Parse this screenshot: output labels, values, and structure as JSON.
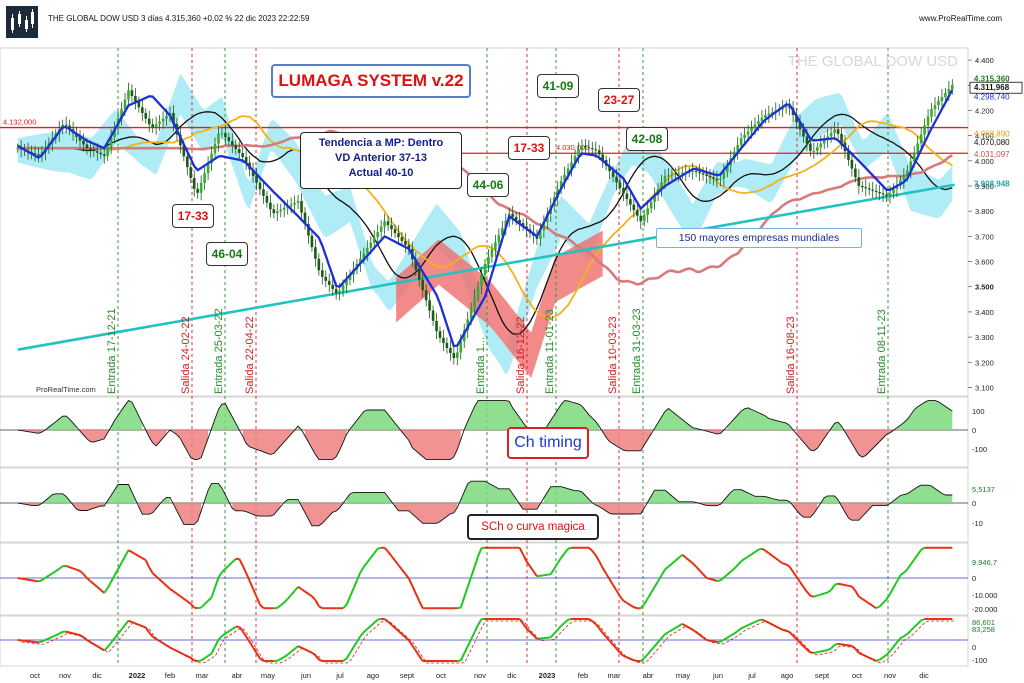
{
  "header": {
    "title": "THE GLOBAL DOW USD 3 días 4.315,360 +0,02 % 22 dic 2023 22:22:59",
    "site": "www.ProRealTime.com",
    "watermark": "THE GLOBAL DOW USD",
    "bottom_left": "ProRealTime.com"
  },
  "annotations": {
    "system_title": "LUMAGA SYSTEM v.22",
    "trend_box": [
      "Tendencia a MP: Dentro",
      "VD Anterior 37-13",
      "Actual 40-10"
    ],
    "companies": "150 mayores empresas mundiales",
    "ch_timing": "Ch timing",
    "sch": "SCh o curva magica",
    "level_4132": "4.132,000",
    "level_4030": "4.030,000"
  },
  "score_boxes": [
    {
      "text": "17-33",
      "color": "red"
    },
    {
      "text": "46-04",
      "color": "green"
    },
    {
      "text": "44-06",
      "color": "green"
    },
    {
      "text": "17-33",
      "color": "red"
    },
    {
      "text": "41-09",
      "color": "green"
    },
    {
      "text": "23-27",
      "color": "red"
    },
    {
      "text": "42-08",
      "color": "green"
    }
  ],
  "signals": [
    {
      "label": "Entrada 17-12-21",
      "type": "entrada"
    },
    {
      "label": "Salida 24-02-22",
      "type": "salida"
    },
    {
      "label": "Entrada 25-03-22",
      "type": "entrada"
    },
    {
      "label": "Salida 22-04-22",
      "type": "salida"
    },
    {
      "label": "Entrada 1...",
      "type": "entrada"
    },
    {
      "label": "Salida 16-12-22",
      "type": "salida"
    },
    {
      "label": "Entrada 11-01-23",
      "type": "entrada"
    },
    {
      "label": "Salida 10-03-23",
      "type": "salida"
    },
    {
      "label": "Entrada 31-03-23",
      "type": "entrada"
    },
    {
      "label": "Salida 16-08-23",
      "type": "salida"
    },
    {
      "label": "Entrada 08-11-23",
      "type": "entrada"
    }
  ],
  "colors": {
    "blue_line": "#1e2fd6",
    "black_line": "#111111",
    "yellow_line": "#f2b21a",
    "salmon_line": "#d97a7a",
    "teal_line": "#23c2c2",
    "cloud": "#8fe4f2",
    "red_fill": "#ef6d6d",
    "up_candle": "#2fb02f",
    "down_candle": "#1a5a1a",
    "level_red": "#e02020",
    "entrada_line": "#2a8a2a",
    "salida_line": "#d22020"
  },
  "chart_data": {
    "type": "line",
    "title": "THE GLOBAL DOW USD",
    "price_axis": {
      "ticks": [
        "4.400",
        "4.300",
        "4.200",
        "4.100",
        "4.000",
        "3.900",
        "3.800",
        "3.700",
        "3.600",
        "3.500",
        "3.400",
        "3.300",
        "3.200",
        "3.100"
      ],
      "ylim": [
        3070,
        4440
      ]
    },
    "time_axis": [
      "oct",
      "nov",
      "dic",
      "2022",
      "feb",
      "mar",
      "abr",
      "may",
      "jun",
      "jul",
      "ago",
      "sept",
      "oct",
      "nov",
      "dic",
      "2023",
      "feb",
      "mar",
      "abr",
      "may",
      "jun",
      "jul",
      "ago",
      "sept",
      "oct",
      "nov",
      "dic"
    ],
    "last_values": {
      "price": "4.311,968",
      "top": "4.315,360",
      "blue": "4.298,740",
      "yellow": "4.068,890",
      "black": "4.070,080",
      "salmon": "4.031,097",
      "teal": "3.908,948"
    },
    "price_path": [
      [
        "2021-10-01",
        4050
      ],
      [
        "2021-10-20",
        4020
      ],
      [
        "2021-11-10",
        4150
      ],
      [
        "2021-11-30",
        4050
      ],
      [
        "2021-12-15",
        4020
      ],
      [
        "2022-01-05",
        4280
      ],
      [
        "2022-01-25",
        4130
      ],
      [
        "2022-02-10",
        4190
      ],
      [
        "2022-03-05",
        3860
      ],
      [
        "2022-03-25",
        4120
      ],
      [
        "2022-04-15",
        4010
      ],
      [
        "2022-05-10",
        3790
      ],
      [
        "2022-06-01",
        3840
      ],
      [
        "2022-06-20",
        3550
      ],
      [
        "2022-07-05",
        3470
      ],
      [
        "2022-08-15",
        3760
      ],
      [
        "2022-09-05",
        3650
      ],
      [
        "2022-09-30",
        3310
      ],
      [
        "2022-10-15",
        3210
      ],
      [
        "2022-11-10",
        3590
      ],
      [
        "2022-12-01",
        3790
      ],
      [
        "2022-12-25",
        3690
      ],
      [
        "2023-01-15",
        3920
      ],
      [
        "2023-02-01",
        4060
      ],
      [
        "2023-02-15",
        4040
      ],
      [
        "2023-03-10",
        3870
      ],
      [
        "2023-03-25",
        3760
      ],
      [
        "2023-04-15",
        3940
      ],
      [
        "2023-05-10",
        3960
      ],
      [
        "2023-06-01",
        3920
      ],
      [
        "2023-06-20",
        4090
      ],
      [
        "2023-07-10",
        4180
      ],
      [
        "2023-07-31",
        4220
      ],
      [
        "2023-08-20",
        4030
      ],
      [
        "2023-09-10",
        4130
      ],
      [
        "2023-09-30",
        3900
      ],
      [
        "2023-10-25",
        3860
      ],
      [
        "2023-11-10",
        3950
      ],
      [
        "2023-12-01",
        4200
      ],
      [
        "2023-12-22",
        4312
      ]
    ],
    "blue_path": [
      [
        "2021-10-01",
        4060
      ],
      [
        "2021-10-20",
        4010
      ],
      [
        "2021-11-10",
        4140
      ],
      [
        "2021-11-30",
        4080
      ],
      [
        "2021-12-15",
        4050
      ],
      [
        "2022-01-05",
        4220
      ],
      [
        "2022-01-25",
        4260
      ],
      [
        "2022-02-10",
        4180
      ],
      [
        "2022-03-05",
        3960
      ],
      [
        "2022-03-25",
        4020
      ],
      [
        "2022-04-15",
        4000
      ],
      [
        "2022-05-10",
        3880
      ],
      [
        "2022-06-01",
        3780
      ],
      [
        "2022-06-20",
        3690
      ],
      [
        "2022-07-05",
        3490
      ],
      [
        "2022-08-15",
        3700
      ],
      [
        "2022-09-05",
        3650
      ],
      [
        "2022-09-30",
        3460
      ],
      [
        "2022-10-15",
        3250
      ],
      [
        "2022-11-10",
        3460
      ],
      [
        "2022-12-01",
        3780
      ],
      [
        "2022-12-25",
        3700
      ],
      [
        "2023-01-15",
        3890
      ],
      [
        "2023-02-01",
        4030
      ],
      [
        "2023-02-15",
        4020
      ],
      [
        "2023-03-10",
        3930
      ],
      [
        "2023-03-25",
        3810
      ],
      [
        "2023-04-15",
        3900
      ],
      [
        "2023-05-10",
        3970
      ],
      [
        "2023-06-01",
        3940
      ],
      [
        "2023-06-20",
        4050
      ],
      [
        "2023-07-10",
        4160
      ],
      [
        "2023-07-31",
        4230
      ],
      [
        "2023-08-20",
        4080
      ],
      [
        "2023-09-10",
        4090
      ],
      [
        "2023-09-30",
        4000
      ],
      [
        "2023-10-25",
        3880
      ],
      [
        "2023-11-10",
        3920
      ],
      [
        "2023-12-01",
        4120
      ],
      [
        "2023-12-22",
        4299
      ]
    ]
  },
  "indicators": [
    {
      "name": "Ch timing",
      "ticks": [
        "100",
        "0",
        "-100"
      ]
    },
    {
      "name": "SCh o curva magica",
      "ticks": [
        "5,5137",
        "0",
        "-10"
      ]
    },
    {
      "name": "panel3",
      "ticks": [
        "9.946,7",
        "0",
        "-10.000",
        "-20.000"
      ]
    },
    {
      "name": "panel4",
      "ticks": [
        "86,601",
        "83,258",
        "0",
        "-100"
      ]
    }
  ]
}
